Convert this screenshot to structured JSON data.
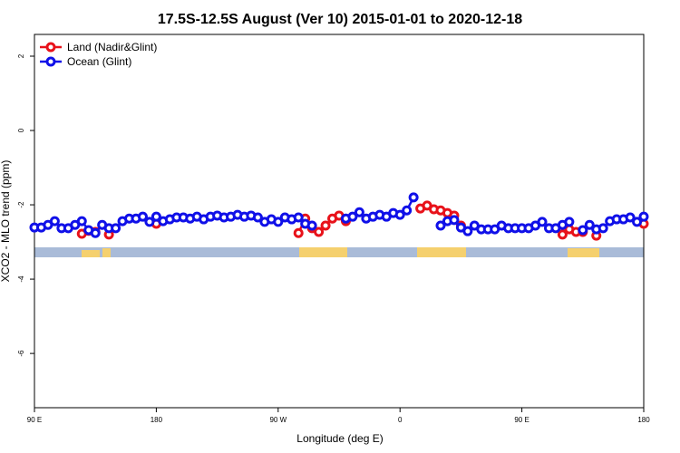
{
  "chart_data": {
    "type": "line",
    "title": "17.5S-12.5S August (Ver 10)   2015-01-01 to 2020-12-18",
    "x_label": "Longitude (deg E)",
    "y_label": "XCO2 - MLO trend (ppm)",
    "x": [
      90,
      95,
      100,
      105,
      110,
      115,
      120,
      125,
      130,
      135,
      140,
      145,
      150,
      155,
      160,
      165,
      170,
      175,
      180,
      185,
      190,
      195,
      200,
      205,
      210,
      215,
      220,
      225,
      230,
      235,
      240,
      245,
      250,
      255,
      260,
      265,
      270,
      275,
      280,
      285,
      290,
      295,
      300,
      305,
      310,
      315,
      320,
      325,
      330,
      335,
      340,
      345,
      350,
      355,
      360,
      365,
      370,
      375,
      380,
      385,
      390,
      395,
      400,
      405,
      410,
      415,
      420,
      425,
      430,
      435,
      440,
      445,
      450,
      455,
      460,
      465,
      470,
      475,
      480,
      485,
      490,
      495,
      500,
      505,
      510,
      515,
      520,
      525,
      530,
      535,
      540
    ],
    "xlim": [
      90,
      540
    ],
    "xticks": [
      {
        "value": 90,
        "label": "90 E"
      },
      180,
      {
        "value": 270,
        "label": "90 W"
      },
      {
        "value": 360,
        "label": "0"
      },
      {
        "value": 450,
        "label": "90 E"
      },
      {
        "value": 540,
        "label": "180"
      }
    ],
    "ylim": [
      -7.46,
      2.585
    ],
    "yticks": [
      2,
      0,
      -2,
      -4,
      -6
    ],
    "legend": "top-left",
    "series": [
      {
        "name": "Land (Nadir&Glint)",
        "color": "#e8121a",
        "values": [
          null,
          null,
          null,
          null,
          null,
          null,
          null,
          -2.78,
          -2.7,
          -2.73,
          null,
          -2.8,
          null,
          null,
          null,
          null,
          null,
          null,
          -2.51,
          null,
          null,
          null,
          null,
          null,
          null,
          null,
          null,
          null,
          null,
          null,
          null,
          null,
          null,
          null,
          null,
          null,
          null,
          null,
          null,
          -2.76,
          -2.37,
          -2.63,
          -2.73,
          -2.56,
          -2.37,
          -2.29,
          -2.44,
          null,
          null,
          null,
          null,
          null,
          null,
          null,
          null,
          null,
          null,
          -2.1,
          -2.02,
          -2.12,
          -2.15,
          -2.22,
          -2.29,
          -2.56,
          null,
          null,
          null,
          null,
          null,
          null,
          null,
          null,
          null,
          null,
          null,
          null,
          null,
          null,
          -2.8,
          -2.66,
          -2.73,
          -2.73,
          null,
          -2.83,
          null,
          null,
          null,
          null,
          null,
          null,
          -2.51
        ]
      },
      {
        "name": "Ocean (Glint)",
        "color": "#1010e8",
        "values": [
          -2.61,
          -2.61,
          -2.54,
          -2.44,
          -2.63,
          -2.63,
          -2.54,
          -2.44,
          -2.68,
          -2.76,
          -2.54,
          -2.63,
          -2.63,
          -2.44,
          -2.37,
          -2.37,
          -2.32,
          -2.46,
          -2.32,
          -2.44,
          -2.39,
          -2.34,
          -2.34,
          -2.37,
          -2.32,
          -2.39,
          -2.32,
          -2.29,
          -2.34,
          -2.32,
          -2.27,
          -2.32,
          -2.29,
          -2.34,
          -2.46,
          -2.39,
          -2.46,
          -2.34,
          -2.39,
          -2.34,
          -2.51,
          -2.56,
          null,
          null,
          null,
          null,
          -2.37,
          -2.32,
          -2.2,
          -2.37,
          -2.32,
          -2.27,
          -2.32,
          -2.22,
          -2.27,
          -2.15,
          -1.8,
          null,
          null,
          null,
          -2.56,
          -2.44,
          -2.41,
          -2.61,
          -2.71,
          -2.56,
          -2.66,
          -2.66,
          -2.66,
          -2.56,
          -2.63,
          -2.63,
          -2.63,
          -2.63,
          -2.56,
          -2.46,
          -2.63,
          -2.63,
          -2.54,
          -2.46,
          null,
          -2.68,
          -2.54,
          -2.66,
          -2.63,
          -2.44,
          -2.39,
          -2.39,
          -2.34,
          -2.46,
          -2.32
        ]
      }
    ]
  }
}
